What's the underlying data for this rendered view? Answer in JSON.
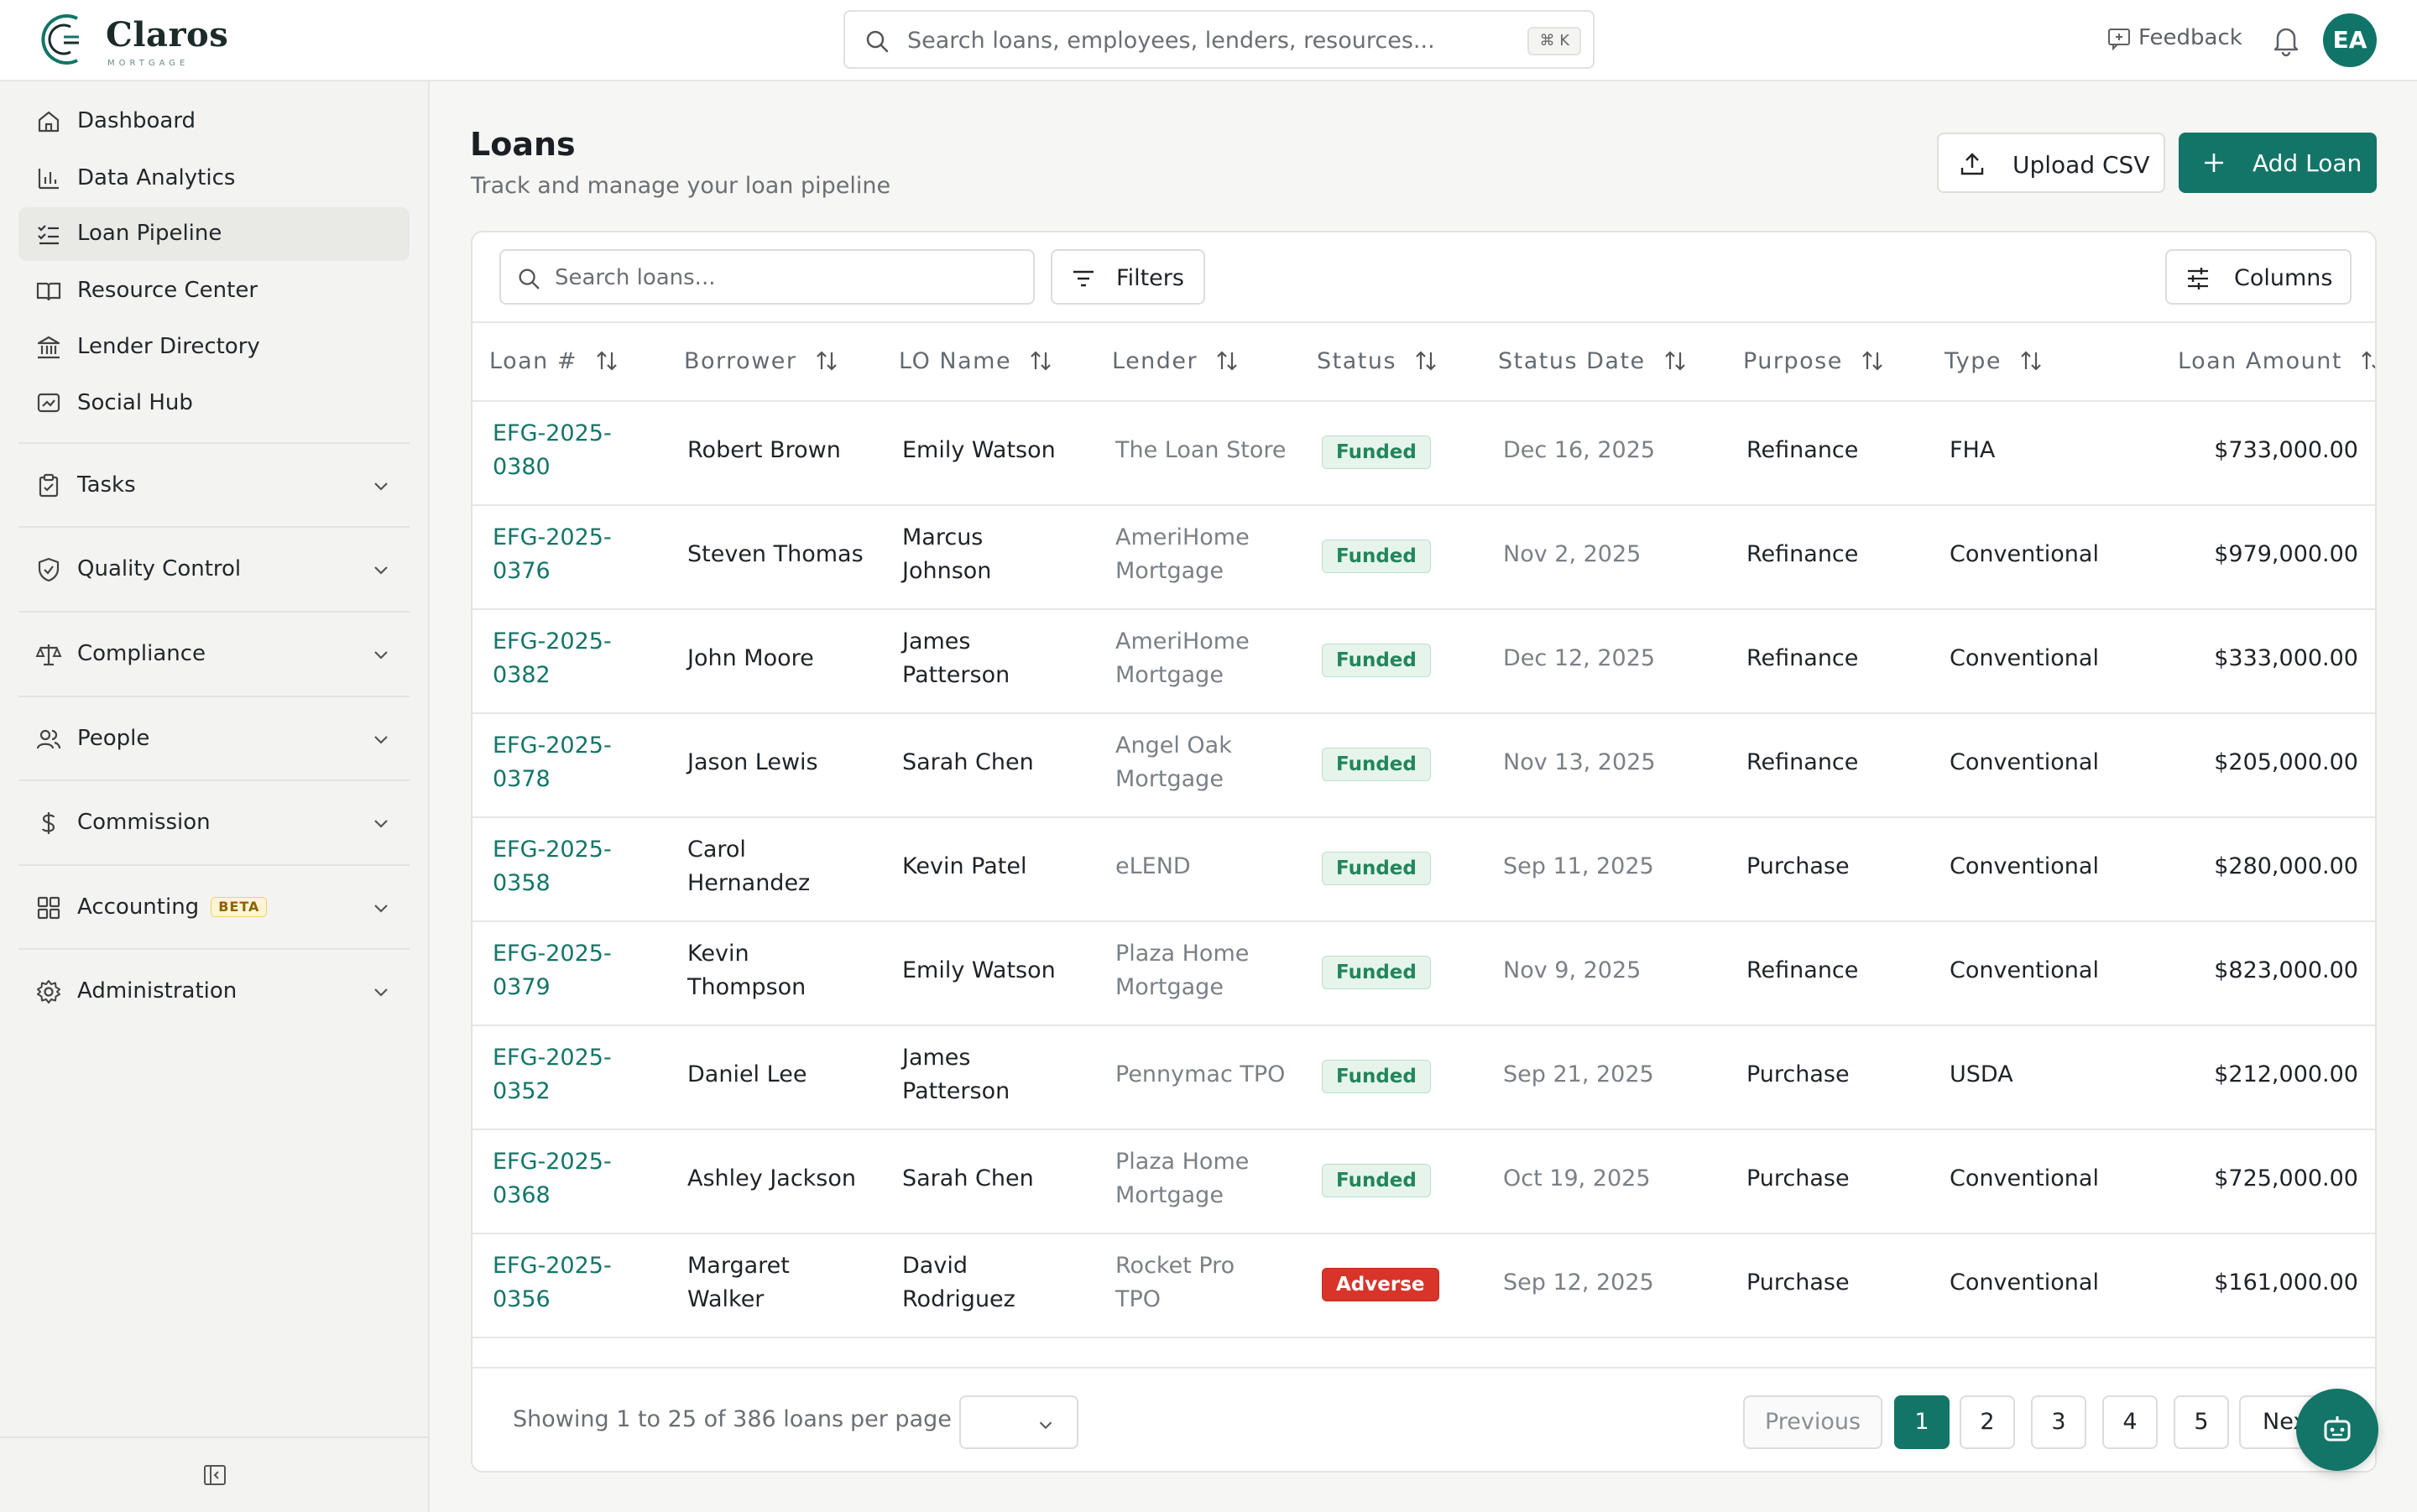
{
  "brand": {
    "name": "Claros",
    "sub": "MORTGAGE"
  },
  "search": {
    "placeholder": "Search loans, employees, lenders, resources...",
    "shortcut": "⌘ K"
  },
  "header": {
    "feedback": "Feedback",
    "avatar_initials": "EA"
  },
  "sidebar": {
    "items": [
      {
        "label": "Dashboard",
        "icon": "home-icon"
      },
      {
        "label": "Data Analytics",
        "icon": "bar-chart-icon"
      },
      {
        "label": "Loan Pipeline",
        "icon": "list-checks-icon",
        "active": true
      },
      {
        "label": "Resource Center",
        "icon": "book-icon"
      },
      {
        "label": "Lender Directory",
        "icon": "bank-icon"
      },
      {
        "label": "Social Hub",
        "icon": "social-icon"
      }
    ],
    "groups": [
      {
        "label": "Tasks",
        "icon": "clipboard-icon"
      },
      {
        "label": "Quality Control",
        "icon": "shield-check-icon"
      },
      {
        "label": "Compliance",
        "icon": "scale-icon"
      },
      {
        "label": "People",
        "icon": "users-icon"
      },
      {
        "label": "Commission",
        "icon": "dollar-icon"
      },
      {
        "label": "Accounting",
        "icon": "grid-icon",
        "badge": "BETA"
      },
      {
        "label": "Administration",
        "icon": "gear-icon"
      }
    ]
  },
  "page": {
    "title": "Loans",
    "subtitle": "Track and manage your loan pipeline"
  },
  "actions": {
    "upload": "Upload CSV",
    "add": "Add Loan"
  },
  "toolbar": {
    "search_placeholder": "Search loans...",
    "filters": "Filters",
    "columns": "Columns"
  },
  "table": {
    "headers": [
      "Loan #",
      "Borrower",
      "LO Name",
      "Lender",
      "Status",
      "Status Date",
      "Purpose",
      "Type",
      "Loan Amount"
    ],
    "rows": [
      {
        "loan": [
          "EFG-2025-",
          "0380"
        ],
        "borrower": [
          "Robert Brown"
        ],
        "lo": [
          "Emily Watson"
        ],
        "lender": [
          "The Loan Store"
        ],
        "status": "Funded",
        "date": "Dec 16, 2025",
        "purpose": "Refinance",
        "type": "FHA",
        "amount": "$733,000.00"
      },
      {
        "loan": [
          "EFG-2025-",
          "0376"
        ],
        "borrower": [
          "Steven Thomas"
        ],
        "lo": [
          "Marcus",
          "Johnson"
        ],
        "lender": [
          "AmeriHome",
          "Mortgage"
        ],
        "status": "Funded",
        "date": "Nov 2, 2025",
        "purpose": "Refinance",
        "type": "Conventional",
        "amount": "$979,000.00"
      },
      {
        "loan": [
          "EFG-2025-",
          "0382"
        ],
        "borrower": [
          "John Moore"
        ],
        "lo": [
          "James",
          "Patterson"
        ],
        "lender": [
          "AmeriHome",
          "Mortgage"
        ],
        "status": "Funded",
        "date": "Dec 12, 2025",
        "purpose": "Refinance",
        "type": "Conventional",
        "amount": "$333,000.00"
      },
      {
        "loan": [
          "EFG-2025-",
          "0378"
        ],
        "borrower": [
          "Jason Lewis"
        ],
        "lo": [
          "Sarah Chen"
        ],
        "lender": [
          "Angel Oak",
          "Mortgage"
        ],
        "status": "Funded",
        "date": "Nov 13, 2025",
        "purpose": "Refinance",
        "type": "Conventional",
        "amount": "$205,000.00"
      },
      {
        "loan": [
          "EFG-2025-",
          "0358"
        ],
        "borrower": [
          "Carol",
          "Hernandez"
        ],
        "lo": [
          "Kevin Patel"
        ],
        "lender": [
          "eLEND"
        ],
        "status": "Funded",
        "date": "Sep 11, 2025",
        "purpose": "Purchase",
        "type": "Conventional",
        "amount": "$280,000.00"
      },
      {
        "loan": [
          "EFG-2025-",
          "0379"
        ],
        "borrower": [
          "Kevin",
          "Thompson"
        ],
        "lo": [
          "Emily Watson"
        ],
        "lender": [
          "Plaza Home",
          "Mortgage"
        ],
        "status": "Funded",
        "date": "Nov 9, 2025",
        "purpose": "Refinance",
        "type": "Conventional",
        "amount": "$823,000.00"
      },
      {
        "loan": [
          "EFG-2025-",
          "0352"
        ],
        "borrower": [
          "Daniel Lee"
        ],
        "lo": [
          "James",
          "Patterson"
        ],
        "lender": [
          "Pennymac TPO"
        ],
        "status": "Funded",
        "date": "Sep 21, 2025",
        "purpose": "Purchase",
        "type": "USDA",
        "amount": "$212,000.00"
      },
      {
        "loan": [
          "EFG-2025-",
          "0368"
        ],
        "borrower": [
          "Ashley Jackson"
        ],
        "lo": [
          "Sarah Chen"
        ],
        "lender": [
          "Plaza Home",
          "Mortgage"
        ],
        "status": "Funded",
        "date": "Oct 19, 2025",
        "purpose": "Purchase",
        "type": "Conventional",
        "amount": "$725,000.00"
      },
      {
        "loan": [
          "EFG-2025-",
          "0356"
        ],
        "borrower": [
          "Margaret",
          "Walker"
        ],
        "lo": [
          "David",
          "Rodriguez"
        ],
        "lender": [
          "Rocket Pro",
          "TPO"
        ],
        "status": "Adverse",
        "date": "Sep 12, 2025",
        "purpose": "Purchase",
        "type": "Conventional",
        "amount": "$161,000.00"
      }
    ]
  },
  "footer": {
    "showing": "Showing 1 to 25 of 386 loans",
    "per_page": "per page",
    "per_page_value": "",
    "previous": "Previous",
    "pages": [
      "1",
      "2",
      "3",
      "4",
      "5"
    ],
    "next": "Next"
  },
  "colors": {
    "accent": "#137567",
    "funded": "#22865a",
    "adverse": "#d8342a",
    "beta": "#f0cf6b"
  }
}
